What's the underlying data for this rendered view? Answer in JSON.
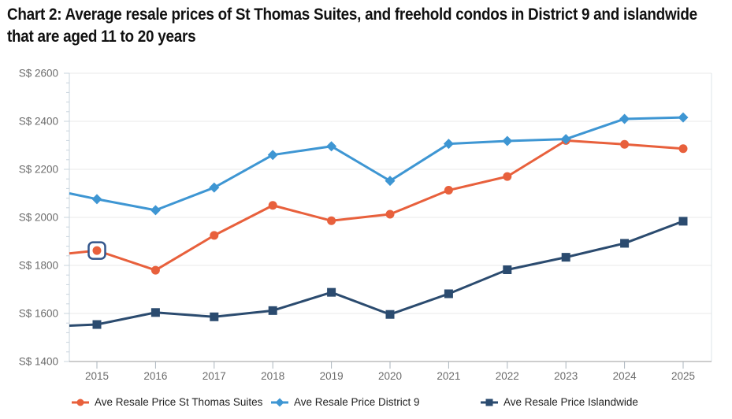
{
  "title": {
    "text": "Chart 2: Average resale prices of St Thomas Suites, and freehold condos in District 9 and islandwide that are aged 11 to 20 years",
    "lines": [
      "Chart 2: Average resale prices of St Thomas Suites, and freehold condos in District 9 and islandwide",
      "that are aged 11 to 20 years"
    ]
  },
  "colors": {
    "st_thomas": "#E8603C",
    "district9": "#3E96D3",
    "islandwide": "#2B4B6F",
    "selection_box": "#33568C",
    "gridline": "#E9E9E9",
    "y_axis_line": "#C9D4DE",
    "x_axis_line": "#9B9B9B",
    "tick": "#ABB5BD",
    "axis_label": "#6B6B6B",
    "title_text": "#111111",
    "legend_text": "#222222",
    "plot_right_border": "#DEE4E9",
    "background": "#FFFFFF"
  },
  "chart_data": {
    "type": "line",
    "x": [
      2015,
      2016,
      2017,
      2018,
      2019,
      2020,
      2021,
      2022,
      2023,
      2024,
      2025
    ],
    "series": [
      {
        "id": "st-thomas",
        "name": "Ave Resale Price St Thomas Suites",
        "marker": "circle",
        "color_key": "st_thomas",
        "left_edge_value": 1850,
        "values": [
          1862,
          1780,
          1925,
          2050,
          1986,
          2013,
          2113,
          2170,
          2320,
          2304,
          2286
        ],
        "selected_year": 2015
      },
      {
        "id": "district-9",
        "name": "Ave Resale Price District 9",
        "marker": "diamond",
        "color_key": "district9",
        "left_edge_value": 2100,
        "values": [
          2076,
          2030,
          2124,
          2260,
          2296,
          2152,
          2306,
          2318,
          2326,
          2410,
          2416
        ]
      },
      {
        "id": "islandwide",
        "name": "Ave Resale Price Islandwide",
        "marker": "square",
        "color_key": "islandwide",
        "left_edge_value": 1549,
        "values": [
          1554,
          1604,
          1586,
          1612,
          1688,
          1596,
          1682,
          1782,
          1834,
          1892,
          1984
        ]
      }
    ],
    "ylabel_prefix": "S$ ",
    "ylim": [
      1400,
      2600
    ],
    "y_tick_step": 200,
    "y_minor_tick_step": 40,
    "grid": "horizontal",
    "legend_position": "bottom"
  }
}
